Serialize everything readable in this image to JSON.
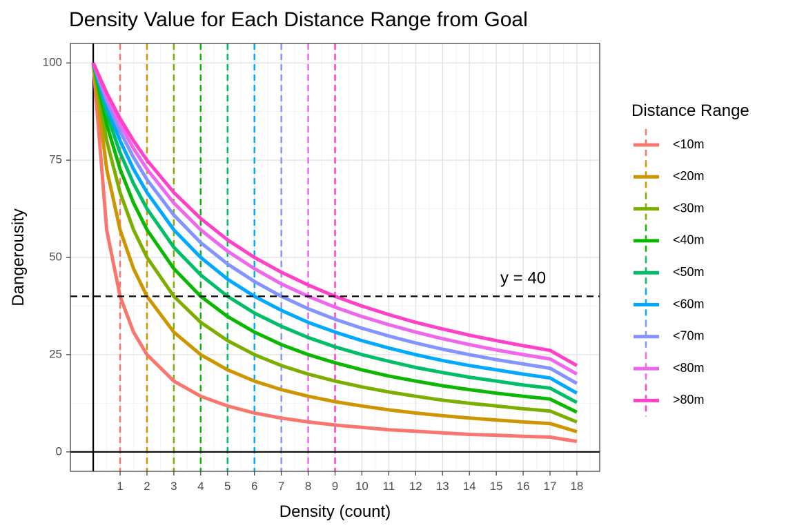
{
  "chart_data": {
    "type": "line",
    "title": "Density Value for Each Distance Range from Goal",
    "xlabel": "Density (count)",
    "ylabel": "Dangerousity",
    "xlim": [
      -0.85,
      18.85
    ],
    "ylim": [
      -5,
      105
    ],
    "x_ticks": [
      1,
      2,
      3,
      4,
      5,
      6,
      7,
      8,
      9,
      10,
      11,
      12,
      13,
      14,
      15,
      16,
      17,
      18
    ],
    "y_ticks": [
      0,
      25,
      50,
      75,
      100
    ],
    "grid": true,
    "legend": {
      "title": "Distance Range",
      "position": "right"
    },
    "reference_line": {
      "y": 40,
      "label": "y = 40",
      "label_x": 16,
      "label_y": 44.5
    },
    "series": [
      {
        "name": "<10m",
        "color": "#F8766D",
        "vline_x": 1,
        "x": [
          0,
          0.5,
          1,
          1.5,
          2,
          3,
          4,
          5,
          6,
          7,
          8,
          9,
          10,
          11,
          12,
          13,
          14,
          15,
          16,
          17,
          18
        ],
        "y": [
          100,
          57.1,
          40.0,
          30.8,
          25.0,
          18.2,
          14.3,
          11.8,
          10.0,
          8.7,
          7.7,
          6.9,
          6.3,
          5.7,
          5.3,
          4.9,
          4.5,
          4.3,
          4.0,
          3.8,
          2.7
        ]
      },
      {
        "name": "<20m",
        "color": "#CD9600",
        "vline_x": 2,
        "x": [
          0,
          0.5,
          1,
          1.5,
          2,
          3,
          4,
          5,
          6,
          7,
          8,
          9,
          10,
          11,
          12,
          13,
          14,
          15,
          16,
          17,
          18
        ],
        "y": [
          100,
          72.7,
          57.1,
          47.1,
          40.0,
          30.8,
          25.0,
          21.1,
          18.2,
          16.0,
          14.3,
          12.9,
          11.8,
          10.8,
          10.0,
          9.3,
          8.7,
          8.2,
          7.7,
          7.3,
          5.2
        ]
      },
      {
        "name": "<30m",
        "color": "#7CAE00",
        "vline_x": 3,
        "x": [
          0,
          0.5,
          1,
          1.5,
          2,
          3,
          4,
          5,
          6,
          7,
          8,
          9,
          10,
          11,
          12,
          13,
          14,
          15,
          16,
          17,
          18
        ],
        "y": [
          100,
          80.0,
          66.7,
          57.1,
          50.0,
          40.0,
          33.3,
          28.6,
          25.0,
          22.2,
          20.0,
          18.2,
          16.7,
          15.4,
          14.3,
          13.3,
          12.5,
          11.8,
          11.1,
          10.5,
          7.7
        ]
      },
      {
        "name": "<40m",
        "color": "#0CB702",
        "vline_x": 4,
        "x": [
          0,
          0.5,
          1,
          1.5,
          2,
          3,
          4,
          5,
          6,
          7,
          8,
          9,
          10,
          11,
          12,
          13,
          14,
          15,
          16,
          17,
          18
        ],
        "y": [
          100,
          84.2,
          72.7,
          64.0,
          57.1,
          47.1,
          40.0,
          34.8,
          30.8,
          27.6,
          25.0,
          22.9,
          21.1,
          19.5,
          18.2,
          17.0,
          16.0,
          15.1,
          14.3,
          13.6,
          10.2
        ]
      },
      {
        "name": "<50m",
        "color": "#00BE67",
        "vline_x": 5,
        "x": [
          0,
          0.5,
          1,
          1.5,
          2,
          3,
          4,
          5,
          6,
          7,
          8,
          9,
          10,
          11,
          12,
          13,
          14,
          15,
          16,
          17,
          18
        ],
        "y": [
          100,
          87.0,
          76.9,
          69.0,
          62.5,
          52.6,
          45.5,
          40.0,
          35.7,
          32.3,
          29.4,
          27.0,
          25.0,
          23.3,
          21.7,
          20.4,
          19.2,
          18.2,
          17.2,
          16.4,
          12.7
        ]
      },
      {
        "name": "<60m",
        "color": "#00A9FF",
        "vline_x": 6,
        "x": [
          0,
          0.5,
          1,
          1.5,
          2,
          3,
          4,
          5,
          6,
          7,
          8,
          9,
          10,
          11,
          12,
          13,
          14,
          15,
          16,
          17,
          18
        ],
        "y": [
          100,
          88.9,
          80.0,
          72.7,
          66.7,
          57.1,
          50.0,
          44.4,
          40.0,
          36.4,
          33.3,
          30.8,
          28.6,
          26.7,
          25.0,
          23.5,
          22.2,
          21.1,
          20.0,
          19.0,
          15.1
        ]
      },
      {
        "name": "<70m",
        "color": "#8494FF",
        "vline_x": 7,
        "x": [
          0,
          0.5,
          1,
          1.5,
          2,
          3,
          4,
          5,
          6,
          7,
          8,
          9,
          10,
          11,
          12,
          13,
          14,
          15,
          16,
          17,
          18
        ],
        "y": [
          100,
          90.3,
          82.4,
          75.7,
          70.0,
          60.9,
          53.8,
          48.3,
          43.8,
          40.0,
          36.8,
          34.1,
          31.8,
          29.8,
          28.0,
          26.4,
          25.0,
          23.7,
          22.6,
          21.5,
          17.6
        ]
      },
      {
        "name": "<80m",
        "color": "#ED68ED",
        "vline_x": 8,
        "x": [
          0,
          0.5,
          1,
          1.5,
          2,
          3,
          4,
          5,
          6,
          7,
          8,
          9,
          10,
          11,
          12,
          13,
          14,
          15,
          16,
          17,
          18
        ],
        "y": [
          100,
          91.4,
          84.2,
          78.0,
          72.7,
          64.0,
          57.1,
          51.6,
          47.1,
          43.2,
          40.0,
          37.2,
          34.8,
          32.7,
          30.8,
          29.1,
          27.6,
          26.2,
          25.0,
          23.9,
          20.0
        ]
      },
      {
        "name": ">80m",
        "color": "#FF41C8",
        "vline_x": 9,
        "x": [
          0,
          0.5,
          1,
          1.5,
          2,
          3,
          4,
          5,
          6,
          7,
          8,
          9,
          10,
          11,
          12,
          13,
          14,
          15,
          16,
          17,
          18
        ],
        "y": [
          100,
          92.3,
          85.7,
          80.0,
          75.0,
          66.7,
          60.0,
          54.5,
          50.0,
          46.2,
          42.9,
          40.0,
          37.5,
          35.3,
          33.3,
          31.6,
          30.0,
          28.6,
          27.3,
          26.1,
          22.2
        ]
      }
    ]
  }
}
